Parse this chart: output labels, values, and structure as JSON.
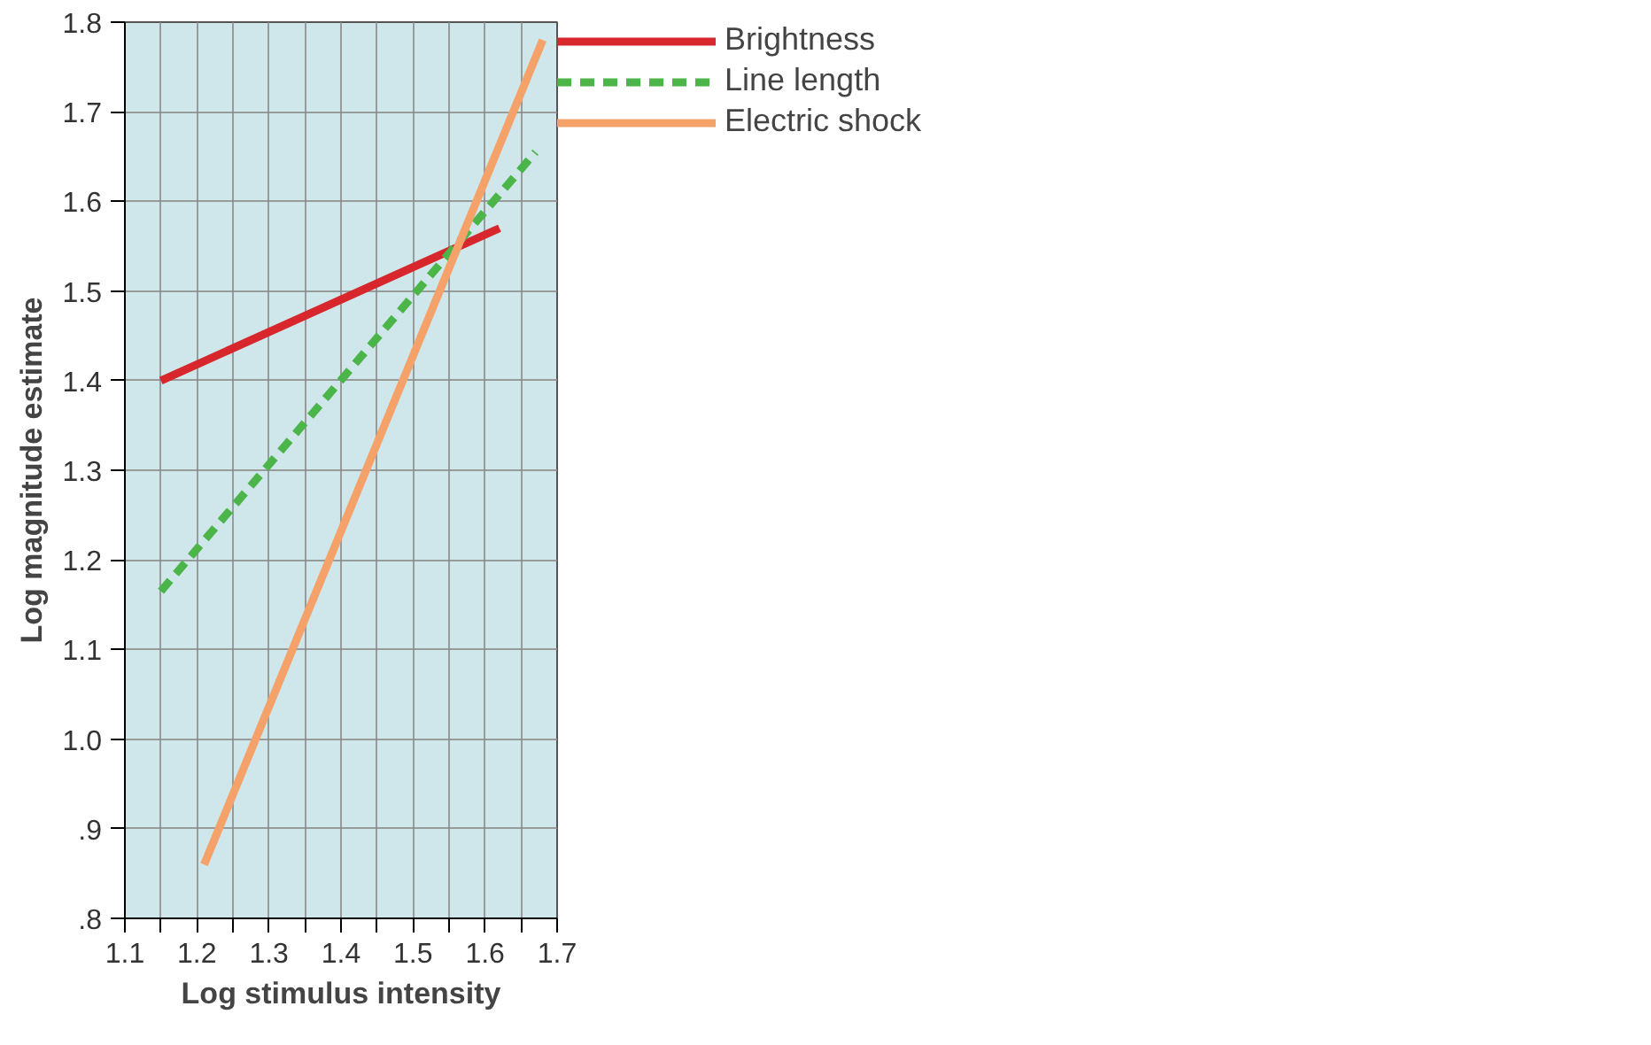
{
  "chart_data": {
    "type": "line",
    "xlabel": "Log stimulus intensity",
    "ylabel": "Log magnitude estimate",
    "series": [
      {
        "name": "Brightness",
        "color": "#d7262c",
        "x": [
          1.15,
          1.62
        ],
        "values": [
          1.4,
          1.57
        ],
        "line_style": "solid"
      },
      {
        "name": "Line length",
        "color": "#4cb54a",
        "x": [
          1.15,
          1.67
        ],
        "values": [
          1.165,
          1.655
        ],
        "line_style": "dashed"
      },
      {
        "name": "Electric shock",
        "color": "#f5a26a",
        "x": [
          1.21,
          1.68
        ],
        "values": [
          0.86,
          1.78
        ],
        "line_style": "solid"
      }
    ],
    "xlim": [
      1.1,
      1.7
    ],
    "ylim": [
      0.8,
      1.8
    ],
    "xticks": [
      1.1,
      {
        "value": 1.15,
        "label": null
      },
      1.2,
      {
        "value": 1.25,
        "label": null
      },
      1.3,
      {
        "value": 1.35,
        "label": null
      },
      1.4,
      {
        "value": 1.45,
        "label": null
      },
      1.5,
      {
        "value": 1.55,
        "label": null
      },
      1.6,
      {
        "value": 1.65,
        "label": null
      },
      1.7
    ],
    "yticks": [
      {
        "value": 0.8,
        "label": ".8"
      },
      {
        "value": 0.9,
        "label": ".9"
      },
      {
        "value": 1.0,
        "label": "1.0"
      },
      1.1,
      1.2,
      1.3,
      1.4,
      1.5,
      1.6,
      1.7,
      1.8
    ],
    "grid": true,
    "legend": "right",
    "marker": "none"
  }
}
